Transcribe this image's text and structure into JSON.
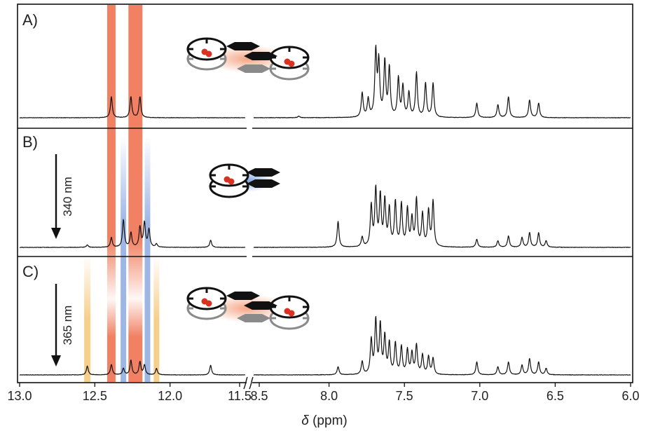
{
  "chart_data": {
    "type": "line",
    "xlabel_symbol": "δ",
    "xlabel_unit": " (ppm)",
    "x_segments": [
      {
        "range": [
          13.0,
          11.5
        ],
        "ticks": [
          "13.0",
          "12.5",
          "12.0",
          "11.5"
        ]
      },
      {
        "range": [
          8.5,
          6.0
        ],
        "ticks": [
          "8.5",
          "8.0",
          "7.5",
          "7.0",
          "6.5",
          "6.0"
        ]
      }
    ],
    "panels": [
      {
        "label": "A)",
        "arrow_label": "",
        "peaks": [
          {
            "x": 12.39,
            "h": 0.26
          },
          {
            "x": 12.26,
            "h": 0.26
          },
          {
            "x": 12.2,
            "h": 0.26
          },
          {
            "x": 8.2,
            "h": 0.02
          },
          {
            "x": 7.78,
            "h": 0.3
          },
          {
            "x": 7.74,
            "h": 0.22
          },
          {
            "x": 7.69,
            "h": 0.8
          },
          {
            "x": 7.67,
            "h": 0.66
          },
          {
            "x": 7.63,
            "h": 0.68
          },
          {
            "x": 7.6,
            "h": 0.6
          },
          {
            "x": 7.54,
            "h": 0.48
          },
          {
            "x": 7.51,
            "h": 0.38
          },
          {
            "x": 7.47,
            "h": 0.3
          },
          {
            "x": 7.42,
            "h": 0.55
          },
          {
            "x": 7.36,
            "h": 0.42
          },
          {
            "x": 7.31,
            "h": 0.42
          },
          {
            "x": 7.02,
            "h": 0.18
          },
          {
            "x": 6.88,
            "h": 0.16
          },
          {
            "x": 6.81,
            "h": 0.26
          },
          {
            "x": 6.67,
            "h": 0.22
          },
          {
            "x": 6.61,
            "h": 0.18
          }
        ]
      },
      {
        "label": "B)",
        "arrow_label": "340 nm",
        "peaks": [
          {
            "x": 12.55,
            "h": 0.03
          },
          {
            "x": 12.39,
            "h": 0.12
          },
          {
            "x": 12.31,
            "h": 0.34
          },
          {
            "x": 12.26,
            "h": 0.18
          },
          {
            "x": 12.2,
            "h": 0.25
          },
          {
            "x": 12.17,
            "h": 0.3
          },
          {
            "x": 12.14,
            "h": 0.22
          },
          {
            "x": 12.09,
            "h": 0.04
          },
          {
            "x": 11.73,
            "h": 0.09
          },
          {
            "x": 7.94,
            "h": 0.32
          },
          {
            "x": 7.78,
            "h": 0.12
          },
          {
            "x": 7.72,
            "h": 0.5
          },
          {
            "x": 7.69,
            "h": 0.7
          },
          {
            "x": 7.66,
            "h": 0.62
          },
          {
            "x": 7.63,
            "h": 0.56
          },
          {
            "x": 7.6,
            "h": 0.46
          },
          {
            "x": 7.56,
            "h": 0.55
          },
          {
            "x": 7.52,
            "h": 0.52
          },
          {
            "x": 7.48,
            "h": 0.46
          },
          {
            "x": 7.45,
            "h": 0.34
          },
          {
            "x": 7.42,
            "h": 0.58
          },
          {
            "x": 7.38,
            "h": 0.4
          },
          {
            "x": 7.34,
            "h": 0.44
          },
          {
            "x": 7.31,
            "h": 0.56
          },
          {
            "x": 7.02,
            "h": 0.1
          },
          {
            "x": 6.88,
            "h": 0.08
          },
          {
            "x": 6.81,
            "h": 0.14
          },
          {
            "x": 6.72,
            "h": 0.12
          },
          {
            "x": 6.67,
            "h": 0.18
          },
          {
            "x": 6.61,
            "h": 0.18
          },
          {
            "x": 6.56,
            "h": 0.08
          }
        ]
      },
      {
        "label": "C)",
        "arrow_label": "365 nm",
        "peaks": [
          {
            "x": 12.55,
            "h": 0.11
          },
          {
            "x": 12.39,
            "h": 0.13
          },
          {
            "x": 12.31,
            "h": 0.08
          },
          {
            "x": 12.26,
            "h": 0.18
          },
          {
            "x": 12.2,
            "h": 0.16
          },
          {
            "x": 12.17,
            "h": 0.12
          },
          {
            "x": 12.09,
            "h": 0.08
          },
          {
            "x": 11.73,
            "h": 0.12
          },
          {
            "x": 7.94,
            "h": 0.1
          },
          {
            "x": 7.78,
            "h": 0.16
          },
          {
            "x": 7.72,
            "h": 0.42
          },
          {
            "x": 7.69,
            "h": 0.66
          },
          {
            "x": 7.66,
            "h": 0.6
          },
          {
            "x": 7.63,
            "h": 0.46
          },
          {
            "x": 7.6,
            "h": 0.38
          },
          {
            "x": 7.56,
            "h": 0.38
          },
          {
            "x": 7.52,
            "h": 0.34
          },
          {
            "x": 7.48,
            "h": 0.3
          },
          {
            "x": 7.45,
            "h": 0.26
          },
          {
            "x": 7.42,
            "h": 0.36
          },
          {
            "x": 7.38,
            "h": 0.24
          },
          {
            "x": 7.34,
            "h": 0.22
          },
          {
            "x": 7.31,
            "h": 0.2
          },
          {
            "x": 7.02,
            "h": 0.16
          },
          {
            "x": 6.88,
            "h": 0.1
          },
          {
            "x": 6.81,
            "h": 0.16
          },
          {
            "x": 6.72,
            "h": 0.12
          },
          {
            "x": 6.67,
            "h": 0.2
          },
          {
            "x": 6.61,
            "h": 0.16
          },
          {
            "x": 6.56,
            "h": 0.08
          }
        ]
      }
    ],
    "highlight_bands": [
      {
        "center": 12.39,
        "color": "#f07a5a",
        "panels": "A-C",
        "style": "fade-between"
      },
      {
        "center": 12.23,
        "width": 0.09,
        "color": "#f07a5a",
        "panels": "A-C",
        "style": "fade-between"
      },
      {
        "center": 12.31,
        "color": "#93aee0",
        "panels": "B-C",
        "style": "fade-top"
      },
      {
        "center": 12.15,
        "color": "#93aee0",
        "panels": "B-C",
        "style": "fade-top"
      },
      {
        "center": 12.55,
        "color": "#f7c97e",
        "panels": "C",
        "style": "fade-top"
      },
      {
        "center": 12.09,
        "color": "#f7c97e",
        "panels": "C",
        "style": "fade-top"
      }
    ],
    "colors": {
      "trace": "#111111",
      "frame": "#111111",
      "red_band": "#f07a5a",
      "blue_band": "#93aee0",
      "yellow_band": "#f7c97e"
    },
    "schematics": [
      {
        "panel": "A)",
        "kind": "dimer"
      },
      {
        "panel": "B)",
        "kind": "monomer"
      },
      {
        "panel": "C)",
        "kind": "dimer"
      }
    ]
  }
}
